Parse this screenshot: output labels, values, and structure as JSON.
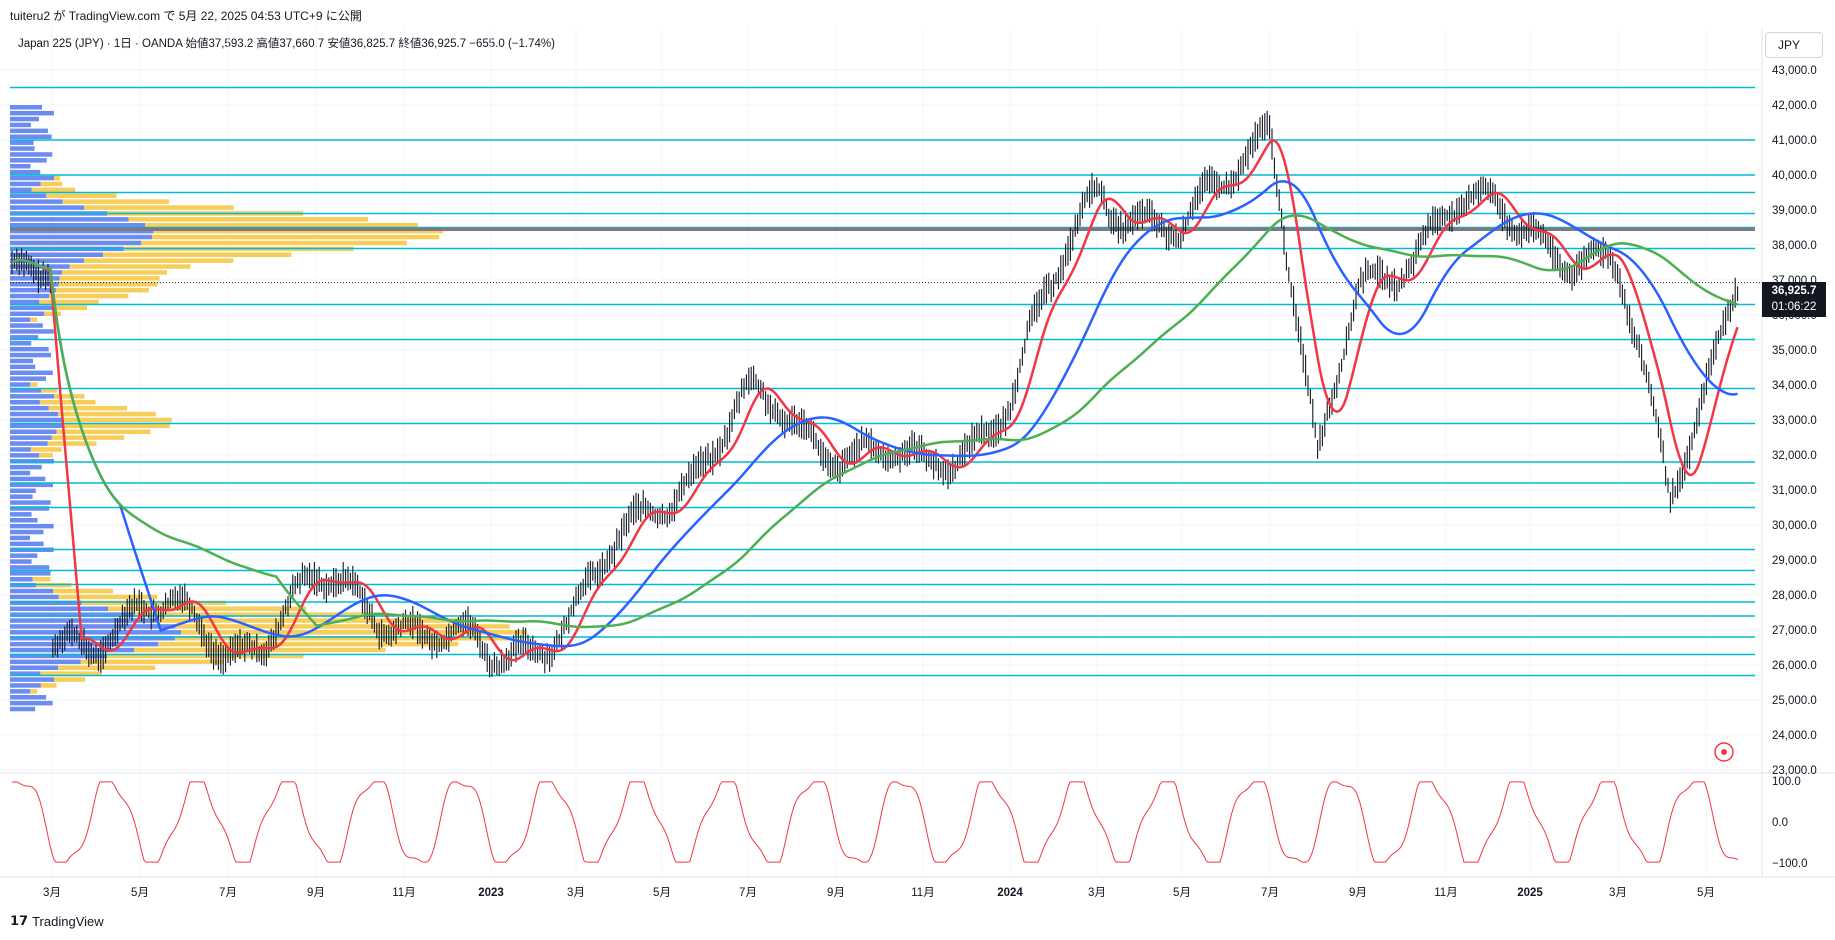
{
  "header": {
    "published": "tuiteru2 が TradingView.com で 5月 22, 2025 04:53 UTC+9 に公開"
  },
  "legend": {
    "text": "Japan 225 (JPY) · 1日 · OANDA  始値37,593.2  高値37,660.7  安値36,825.7  終値36,925.7  −655.0 (−1.74%)"
  },
  "currency": "JPY",
  "last_price": {
    "value": "36,925.7",
    "countdown": "01:06:22"
  },
  "price_axis": [
    "43,000.0",
    "42,000.0",
    "41,000.0",
    "40,000.0",
    "39,000.0",
    "38,000.0",
    "37,000.0",
    "36,000.0",
    "35,000.0",
    "34,000.0",
    "33,000.0",
    "32,000.0",
    "31,000.0",
    "30,000.0",
    "29,000.0",
    "28,000.0",
    "27,000.0",
    "26,000.0",
    "25,000.0",
    "24,000.0",
    "23,000.0"
  ],
  "osc_axis": [
    "100.0",
    "0.0",
    "−100.0"
  ],
  "time_axis": [
    "3月",
    "5月",
    "7月",
    "9月",
    "11月",
    "2023",
    "3月",
    "5月",
    "7月",
    "9月",
    "11月",
    "2024",
    "3月",
    "5月",
    "7月",
    "9月",
    "11月",
    "2025",
    "3月",
    "5月"
  ],
  "footer": {
    "brand": "TradingView"
  },
  "colors": {
    "red_ma": "#f23645",
    "blue_ma": "#2962ff",
    "green_ma": "#4caf50",
    "hline": "#00bcd4",
    "vp_blue": "#5b7ff0",
    "vp_yellow": "#f7c948",
    "osc": "#f23645"
  },
  "chart_data": {
    "type": "line",
    "title": "Japan 225 (JPY) · 1日 · OANDA",
    "ylim": [
      23000,
      43000
    ],
    "x": [
      "2022-03",
      "2022-05",
      "2022-07",
      "2022-09",
      "2022-11",
      "2023-01",
      "2023-03",
      "2023-05",
      "2023-07",
      "2023-09",
      "2023-11",
      "2024-01",
      "2024-03",
      "2024-05",
      "2024-07",
      "2024-08",
      "2024-09",
      "2024-11",
      "2025-01",
      "2025-03",
      "2025-04",
      "2025-05"
    ],
    "series": [
      {
        "values": [
          26200,
          27800,
          26400,
          28200,
          27400,
          26000,
          27600,
          30800,
          33400,
          32400,
          31400,
          33600,
          39800,
          38000,
          41800,
          31500,
          36500,
          39000,
          38600,
          37000,
          31000,
          36926
        ]
      }
    ],
    "support_resistance_levels": [
      42500,
      41000,
      40000,
      39500,
      38900,
      38500,
      37900,
      36300,
      35300,
      33900,
      32900,
      31800,
      31200,
      30500,
      29300,
      28700,
      28300,
      27800,
      27400,
      26800,
      26300,
      25700
    ],
    "oscillator_range": [
      -100,
      100
    ]
  }
}
